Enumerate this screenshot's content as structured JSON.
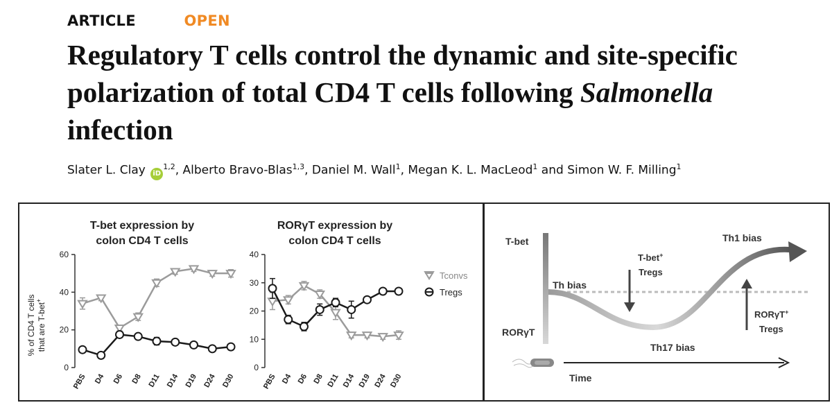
{
  "header": {
    "article_label": "ARTICLE",
    "open_label": "OPEN",
    "title_line1": "Regulatory T cells control the dynamic and site-specific",
    "title_line2a": "polarization of total CD4 T cells following ",
    "title_line2b": "Salmonella",
    "title_line3": "infection"
  },
  "authors": {
    "a1": "Slater L. Clay",
    "a1_aff": "1,2",
    "a2": ", Alberto Bravo-Blas",
    "a2_aff": "1,3",
    "a3": ", Daniel M. Wall",
    "a3_aff": "1",
    "a4": ", Megan K. L. MacLeod",
    "a4_aff": "1",
    "a5": " and Simon W. F. Milling",
    "a5_aff": "1",
    "orcid_label": "iD"
  },
  "colors": {
    "open": "#f08a24",
    "orcid": "#a6ce39",
    "tconv": "#9b9b9b",
    "treg": "#1a1a1a"
  },
  "chart_data": [
    {
      "type": "line",
      "title_line1": "T-bet expression by",
      "title_line2": "colon CD4 T cells",
      "ylabel_line1": "% of CD4 T cells",
      "ylabel_line2": "that are T-bet",
      "ylabel_sup": "+",
      "ylim": [
        0,
        60
      ],
      "yticks": [
        "0",
        "20",
        "40",
        "60"
      ],
      "categories": [
        "PBS",
        "D4",
        "D6",
        "D8",
        "D11",
        "D14",
        "D19",
        "D24",
        "D30"
      ],
      "series": [
        {
          "name": "Tconvs",
          "values": [
            34,
            37,
            21,
            27,
            45,
            51,
            52.5,
            50,
            50
          ],
          "errors": [
            3,
            1.5,
            1.5,
            2,
            2,
            1.5,
            1.5,
            1.5,
            2
          ]
        },
        {
          "name": "Tregs",
          "values": [
            9.5,
            6.5,
            17.5,
            16.5,
            14,
            13.5,
            12,
            10,
            11
          ],
          "errors": [
            1.5,
            1,
            1,
            1,
            2,
            1,
            1,
            1,
            1
          ]
        }
      ]
    },
    {
      "type": "line",
      "title_line1": "RORγT expression by",
      "title_line2": "colon CD4 T cells",
      "ylim": [
        0,
        40
      ],
      "yticks": [
        "0",
        "10",
        "20",
        "30",
        "40"
      ],
      "categories": [
        "PBS",
        "D4",
        "D6",
        "D8",
        "D11",
        "D14",
        "D19",
        "D24",
        "D30"
      ],
      "legend": [
        "Tconvs",
        "Tregs"
      ],
      "series": [
        {
          "name": "Tconvs",
          "values": [
            23.5,
            24,
            29,
            26,
            19.5,
            11.5,
            11.5,
            11,
            11.5
          ],
          "errors": [
            3,
            1.5,
            1.5,
            1.5,
            2.5,
            1,
            1,
            1,
            1.5
          ]
        },
        {
          "name": "Tregs",
          "values": [
            28,
            17,
            14.5,
            20.5,
            23,
            20.5,
            24,
            27,
            27
          ],
          "errors": [
            3.5,
            1.5,
            1.5,
            2,
            1.5,
            3,
            1,
            1,
            1
          ]
        }
      ]
    }
  ],
  "schematic": {
    "tbet_label": "T-bet",
    "rorgt_label": "RORγT",
    "th_bias": "Th bias",
    "th1_bias": "Th1 bias",
    "th17_bias": "Th17 bias",
    "tbet_tregs_line1": "T-bet",
    "tbet_tregs_sup": "+",
    "tbet_tregs_line2": "Tregs",
    "rorgt_tregs_line1": "RORγT",
    "rorgt_tregs_sup": "+",
    "rorgt_tregs_line2": "Tregs",
    "time_label": "Time"
  }
}
